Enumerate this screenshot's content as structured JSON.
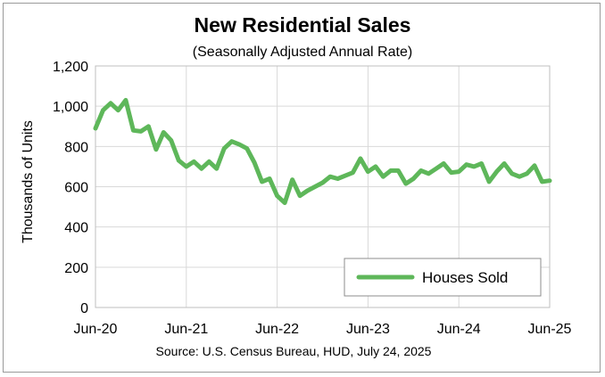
{
  "chart_data": {
    "type": "line",
    "title": "New Residential Sales",
    "subtitle": "(Seasonally Adjusted Annual Rate)",
    "ylabel": "Thousands of Units",
    "xlabel": "",
    "source": "Source:  U.S. Census Bureau, HUD, July 24, 2025",
    "ylim": [
      0,
      1200
    ],
    "yticks": [
      "0",
      "200",
      "400",
      "600",
      "800",
      "1,000",
      "1,200"
    ],
    "xticks": [
      "Jun-20",
      "Jun-21",
      "Jun-22",
      "Jun-23",
      "Jun-24",
      "Jun-25"
    ],
    "grid": true,
    "legend_position": "bottom-right",
    "line_color": "#5eb75a",
    "series": [
      {
        "name": "Houses Sold",
        "x": [
          "2020-06",
          "2020-07",
          "2020-08",
          "2020-09",
          "2020-10",
          "2020-11",
          "2020-12",
          "2021-01",
          "2021-02",
          "2021-03",
          "2021-04",
          "2021-05",
          "2021-06",
          "2021-07",
          "2021-08",
          "2021-09",
          "2021-10",
          "2021-11",
          "2021-12",
          "2022-01",
          "2022-02",
          "2022-03",
          "2022-04",
          "2022-05",
          "2022-06",
          "2022-07",
          "2022-08",
          "2022-09",
          "2022-10",
          "2022-11",
          "2022-12",
          "2023-01",
          "2023-02",
          "2023-03",
          "2023-04",
          "2023-05",
          "2023-06",
          "2023-07",
          "2023-08",
          "2023-09",
          "2023-10",
          "2023-11",
          "2023-12",
          "2024-01",
          "2024-02",
          "2024-03",
          "2024-04",
          "2024-05",
          "2024-06",
          "2024-07",
          "2024-08",
          "2024-09",
          "2024-10",
          "2024-11",
          "2024-12",
          "2025-01",
          "2025-02",
          "2025-03",
          "2025-04",
          "2025-05",
          "2025-06"
        ],
        "values": [
          890,
          980,
          1015,
          980,
          1030,
          880,
          875,
          900,
          785,
          870,
          830,
          730,
          700,
          725,
          690,
          725,
          690,
          790,
          825,
          810,
          790,
          720,
          625,
          640,
          555,
          520,
          635,
          555,
          580,
          600,
          620,
          650,
          640,
          655,
          670,
          740,
          675,
          700,
          650,
          680,
          680,
          615,
          640,
          680,
          665,
          690,
          715,
          670,
          675,
          710,
          700,
          715,
          625,
          675,
          715,
          665,
          650,
          665,
          705,
          625,
          630
        ]
      }
    ]
  }
}
